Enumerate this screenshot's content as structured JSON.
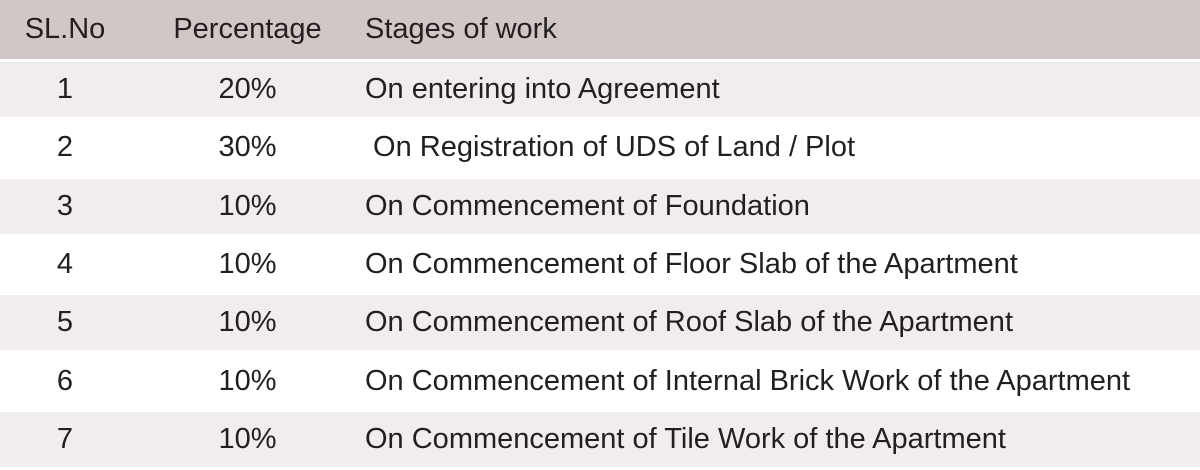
{
  "colors": {
    "header_bg": "#d2c7c7",
    "row_alt_bg": "#f0edec",
    "row_bg": "#ffffff",
    "text": "#231f20"
  },
  "table": {
    "columns": {
      "sl_no": "SL.No",
      "percentage": "Percentage",
      "stages": "Stages of work"
    },
    "rows": [
      {
        "no": "1",
        "pct": "20%",
        "stage": "On entering into Agreement"
      },
      {
        "no": "2",
        "pct": "30%",
        "stage": " On Registration of UDS of Land / Plot"
      },
      {
        "no": "3",
        "pct": "10%",
        "stage": "On Commencement of Foundation"
      },
      {
        "no": "4",
        "pct": "10%",
        "stage": "On Commencement of Floor Slab of the Apartment"
      },
      {
        "no": "5",
        "pct": "10%",
        "stage": "On Commencement of Roof Slab of the Apartment"
      },
      {
        "no": "6",
        "pct": "10%",
        "stage": "On Commencement of Internal Brick Work of the Apartment"
      },
      {
        "no": "7",
        "pct": "10%",
        "stage": "On Commencement of Tile Work of the Apartment"
      }
    ]
  }
}
